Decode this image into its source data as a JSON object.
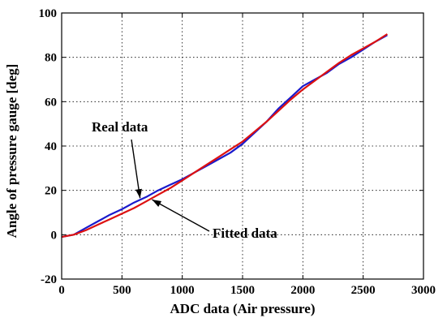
{
  "chart_data": {
    "type": "line",
    "xlabel": "ADC data (Air pressure)",
    "ylabel": "Angle of pressure gauge [deg]",
    "xlim": [
      0,
      3000
    ],
    "ylim": [
      -20,
      100
    ],
    "xticks": [
      0,
      500,
      1000,
      1500,
      2000,
      2500,
      3000
    ],
    "yticks": [
      -20,
      0,
      20,
      40,
      60,
      80,
      100
    ],
    "grid": true,
    "annotations": [
      {
        "text": "Real data",
        "points_to": "Real data"
      },
      {
        "text": "Fitted data",
        "points_to": "Fitted data"
      }
    ],
    "series": [
      {
        "name": "Real data",
        "color": "#1a1acc",
        "x": [
          0,
          100,
          200,
          300,
          400,
          500,
          600,
          700,
          800,
          900,
          1000,
          1100,
          1200,
          1300,
          1400,
          1500,
          1600,
          1700,
          1800,
          1900,
          2000,
          2100,
          2200,
          2300,
          2400,
          2500,
          2600,
          2700
        ],
        "y": [
          -1,
          0,
          3,
          6,
          9,
          11.5,
          14.5,
          17,
          20,
          22.5,
          25,
          28,
          31,
          34,
          37,
          41,
          46,
          51,
          57,
          62,
          67,
          70,
          73,
          77,
          80,
          83.5,
          87,
          90
        ]
      },
      {
        "name": "Fitted data",
        "color": "#dd1111",
        "x": [
          0,
          100,
          200,
          300,
          400,
          500,
          600,
          700,
          800,
          900,
          1000,
          1100,
          1200,
          1300,
          1400,
          1500,
          1600,
          1700,
          1800,
          1900,
          2000,
          2100,
          2200,
          2300,
          2400,
          2500,
          2600,
          2700
        ],
        "y": [
          -1,
          0,
          2,
          4.5,
          7,
          9.5,
          12,
          15,
          18,
          21,
          24.5,
          28,
          31.5,
          35,
          38.5,
          42,
          46.5,
          51,
          56,
          61,
          65.5,
          69.5,
          73.5,
          77.5,
          81,
          84,
          87,
          90.5
        ]
      }
    ]
  }
}
